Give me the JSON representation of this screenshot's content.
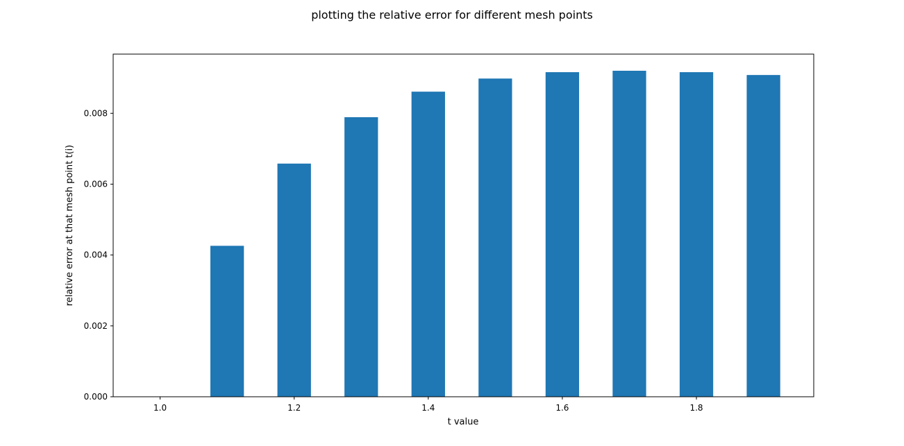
{
  "chart_data": {
    "type": "bar",
    "title": "plotting the relative error for different mesh points",
    "xlabel": "t value",
    "ylabel": "relative error at that mesh point t(i)",
    "bar_color": "#1f77b4",
    "bar_width": 0.05,
    "x": [
      1.0,
      1.1,
      1.2,
      1.3,
      1.4,
      1.5,
      1.6,
      1.7,
      1.8,
      1.9
    ],
    "values": [
      0.0,
      0.00426,
      0.00658,
      0.00789,
      0.00861,
      0.00898,
      0.00916,
      0.0092,
      0.00916,
      0.00908
    ],
    "xlim": [
      0.93,
      1.975
    ],
    "ylim": [
      0.0,
      0.00967
    ],
    "xticks": [
      1.0,
      1.2,
      1.4,
      1.6,
      1.8
    ],
    "xtick_labels": [
      "1.0",
      "1.2",
      "1.4",
      "1.6",
      "1.8"
    ],
    "yticks": [
      0.0,
      0.002,
      0.004,
      0.006,
      0.008
    ],
    "ytick_labels": [
      "0.000",
      "0.002",
      "0.004",
      "0.006",
      "0.008"
    ],
    "grid": false,
    "legend": "none"
  }
}
